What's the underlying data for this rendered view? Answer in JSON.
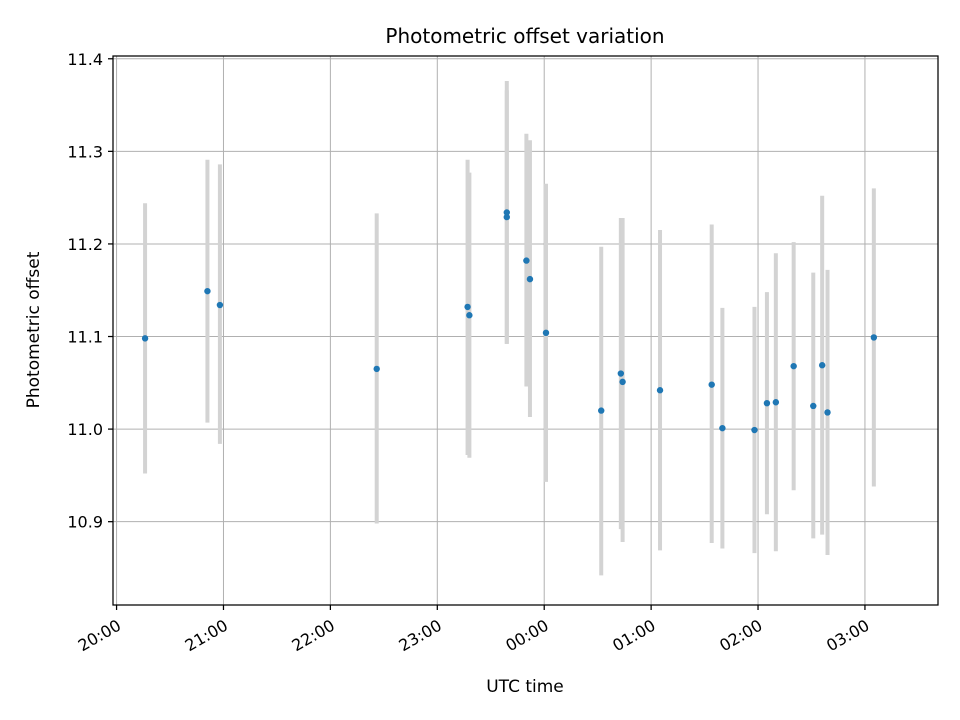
{
  "chart_data": {
    "type": "scatter",
    "title": "Photometric offset variation",
    "xlabel": "UTC time",
    "ylabel": "Photometric offset",
    "x_unit": "UTC time (HH:MM), continuing past midnight into the next day",
    "xlim": [
      "19:58",
      "03:41"
    ],
    "ylim": [
      10.81,
      11.403
    ],
    "grid": true,
    "xticks": [
      "20:00",
      "21:00",
      "22:00",
      "23:00",
      "00:00",
      "01:00",
      "02:00",
      "03:00"
    ],
    "yticks": [
      "10.9",
      "11.0",
      "11.1",
      "11.2",
      "11.3",
      "11.4"
    ],
    "point_color": "#1f77b4",
    "errorbar_color": "#d3d3d3",
    "points": [
      {
        "t": "20:16",
        "y": 11.098,
        "lo": 10.952,
        "hi": 11.244
      },
      {
        "t": "20:51",
        "y": 11.149,
        "lo": 11.007,
        "hi": 11.291
      },
      {
        "t": "20:58",
        "y": 11.134,
        "lo": 10.984,
        "hi": 11.286
      },
      {
        "t": "22:26",
        "y": 11.065,
        "lo": 10.898,
        "hi": 11.233
      },
      {
        "t": "23:17",
        "y": 11.132,
        "lo": 10.972,
        "hi": 11.291
      },
      {
        "t": "23:18",
        "y": 11.123,
        "lo": 10.969,
        "hi": 11.277
      },
      {
        "t": "23:39",
        "y": 11.234,
        "lo": 11.092,
        "hi": 11.376
      },
      {
        "t": "23:39",
        "y": 11.229,
        "lo": 11.092,
        "hi": 11.366
      },
      {
        "t": "23:50",
        "y": 11.182,
        "lo": 11.046,
        "hi": 11.319
      },
      {
        "t": "23:52",
        "y": 11.162,
        "lo": 11.013,
        "hi": 11.312
      },
      {
        "t": "00:01",
        "y": 11.104,
        "lo": 10.943,
        "hi": 11.265
      },
      {
        "t": "00:32",
        "y": 11.02,
        "lo": 10.842,
        "hi": 11.197
      },
      {
        "t": "00:43",
        "y": 11.06,
        "lo": 10.892,
        "hi": 11.228
      },
      {
        "t": "00:44",
        "y": 11.051,
        "lo": 10.878,
        "hi": 11.228
      },
      {
        "t": "01:05",
        "y": 11.042,
        "lo": 10.869,
        "hi": 11.215
      },
      {
        "t": "01:34",
        "y": 11.048,
        "lo": 10.877,
        "hi": 11.221
      },
      {
        "t": "01:40",
        "y": 11.001,
        "lo": 10.871,
        "hi": 11.131
      },
      {
        "t": "01:58",
        "y": 10.999,
        "lo": 10.866,
        "hi": 11.132
      },
      {
        "t": "02:05",
        "y": 11.028,
        "lo": 10.908,
        "hi": 11.148
      },
      {
        "t": "02:10",
        "y": 11.029,
        "lo": 10.868,
        "hi": 11.19
      },
      {
        "t": "02:20",
        "y": 11.068,
        "lo": 10.934,
        "hi": 11.202
      },
      {
        "t": "02:31",
        "y": 11.025,
        "lo": 10.882,
        "hi": 11.169
      },
      {
        "t": "02:36",
        "y": 11.069,
        "lo": 10.886,
        "hi": 11.252
      },
      {
        "t": "02:39",
        "y": 11.018,
        "lo": 10.864,
        "hi": 11.172
      },
      {
        "t": "03:05",
        "y": 11.099,
        "lo": 10.938,
        "hi": 11.26
      }
    ]
  }
}
